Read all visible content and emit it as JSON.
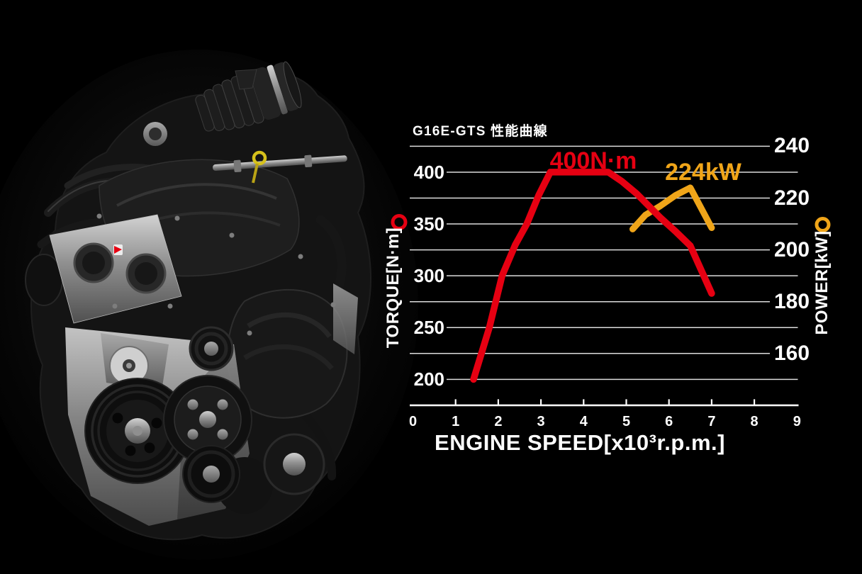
{
  "page": {
    "background": "#000000"
  },
  "engine": {
    "description": "Toyota G16E-GTS turbocharged engine studio photo on black background",
    "dipstick_accent_color": "#d6c11c",
    "emblem_color": "#e60012"
  },
  "chart_data": {
    "type": "line",
    "title": "G16E-GTS 性能曲線",
    "x_axis": {
      "label": "ENGINE SPEED[x10³r.p.m.]",
      "min": 0,
      "max": 9,
      "ticks": [
        "0",
        "1",
        "2",
        "3",
        "4",
        "5",
        "6",
        "7",
        "8",
        "9"
      ]
    },
    "y_left": {
      "label": "TORQUE[N·m]",
      "ticks": [
        "400",
        "350",
        "300",
        "250",
        "200"
      ],
      "top_gridline_value": 425,
      "bottom_axis_value": 175,
      "value_per_gridline": 25,
      "marker_color": "#e60012"
    },
    "y_right": {
      "label": "POWER[kW]",
      "ticks": [
        "240",
        "220",
        "200",
        "180",
        "160"
      ],
      "top_gridline_value": 240,
      "bottom_axis_value": 140,
      "value_per_gridline": 10,
      "marker_color": "#f0a519"
    },
    "grid": "horizontal gridlines every 25 N·m / 10 kW, white on black",
    "legend_position": "labels beside curve peaks",
    "series": [
      {
        "name": "power",
        "annotation": "224kW",
        "color": "#f0a519",
        "axis": "right",
        "points": [
          [
            5.15,
            208
          ],
          [
            5.45,
            213.5
          ],
          [
            5.8,
            217
          ],
          [
            6.15,
            221
          ],
          [
            6.5,
            224
          ],
          [
            7.0,
            208.5
          ]
        ],
        "peak": {
          "speed_x1000rpm": 6.5,
          "power_kw": 224
        }
      },
      {
        "name": "torque",
        "annotation": "400N·m",
        "color": "#e60012",
        "axis": "left",
        "points": [
          [
            1.42,
            200
          ],
          [
            1.79,
            250
          ],
          [
            2.09,
            300
          ],
          [
            2.4,
            330
          ],
          [
            2.67,
            350
          ],
          [
            2.95,
            378
          ],
          [
            3.22,
            400
          ],
          [
            4.58,
            400
          ],
          [
            4.9,
            391
          ],
          [
            5.25,
            379
          ],
          [
            5.8,
            356
          ],
          [
            6.15,
            343
          ],
          [
            6.5,
            329
          ],
          [
            7.0,
            283
          ]
        ],
        "plateau": {
          "torque_nm": 400,
          "from_x1000rpm": 3.25,
          "to_x1000rpm": 4.6
        }
      }
    ]
  }
}
